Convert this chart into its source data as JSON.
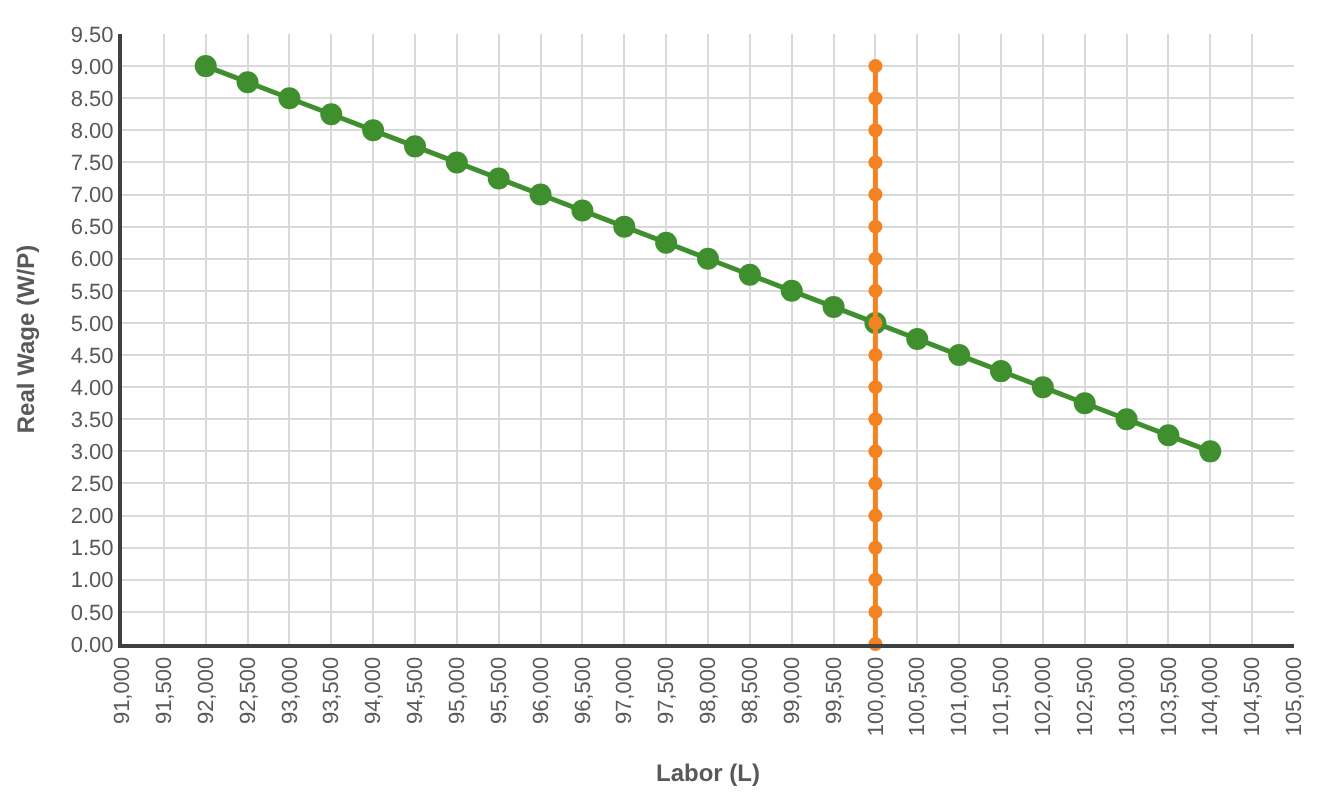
{
  "chart_data": {
    "type": "line",
    "xlabel": "Labor (L)",
    "ylabel": "Real Wage (W/P)",
    "xlim": [
      91000,
      105000
    ],
    "xticks": [
      {
        "value": 91000,
        "label": "91,000"
      },
      {
        "value": 91500,
        "label": "91,500"
      },
      {
        "value": 92000,
        "label": "92,000"
      },
      {
        "value": 92500,
        "label": "92,500"
      },
      {
        "value": 93000,
        "label": "93,000"
      },
      {
        "value": 93500,
        "label": "93,500"
      },
      {
        "value": 94000,
        "label": "94,000"
      },
      {
        "value": 94500,
        "label": "94,500"
      },
      {
        "value": 95000,
        "label": "95,000"
      },
      {
        "value": 95500,
        "label": "95,500"
      },
      {
        "value": 96000,
        "label": "96,000"
      },
      {
        "value": 96500,
        "label": "96,500"
      },
      {
        "value": 97000,
        "label": "97,000"
      },
      {
        "value": 97500,
        "label": "97,500"
      },
      {
        "value": 98000,
        "label": "98,000"
      },
      {
        "value": 98500,
        "label": "98,500"
      },
      {
        "value": 99000,
        "label": "99,000"
      },
      {
        "value": 99500,
        "label": "99,500"
      },
      {
        "value": 100000,
        "label": "100,000"
      },
      {
        "value": 100500,
        "label": "100,500"
      },
      {
        "value": 101000,
        "label": "101,000"
      },
      {
        "value": 101500,
        "label": "101,500"
      },
      {
        "value": 102000,
        "label": "102,000"
      },
      {
        "value": 102500,
        "label": "102,500"
      },
      {
        "value": 103000,
        "label": "103,000"
      },
      {
        "value": 103500,
        "label": "103,500"
      },
      {
        "value": 104000,
        "label": "104,000"
      },
      {
        "value": 104500,
        "label": "104,500"
      },
      {
        "value": 105000,
        "label": "105,000"
      }
    ],
    "ylim": [
      0,
      9.5
    ],
    "yticks": [
      {
        "value": 0,
        "label": "0.00"
      },
      {
        "value": 0.5,
        "label": "0.50"
      },
      {
        "value": 1,
        "label": "1.00"
      },
      {
        "value": 1.5,
        "label": "1.50"
      },
      {
        "value": 2,
        "label": "2.00"
      },
      {
        "value": 2.5,
        "label": "2.50"
      },
      {
        "value": 3,
        "label": "3.00"
      },
      {
        "value": 3.5,
        "label": "3.50"
      },
      {
        "value": 4,
        "label": "4.00"
      },
      {
        "value": 4.5,
        "label": "4.50"
      },
      {
        "value": 5,
        "label": "5.00"
      },
      {
        "value": 5.5,
        "label": "5.50"
      },
      {
        "value": 6,
        "label": "6.00"
      },
      {
        "value": 6.5,
        "label": "6.50"
      },
      {
        "value": 7,
        "label": "7.00"
      },
      {
        "value": 7.5,
        "label": "7.50"
      },
      {
        "value": 8,
        "label": "8.00"
      },
      {
        "value": 8.5,
        "label": "8.50"
      },
      {
        "value": 9,
        "label": "9.00"
      },
      {
        "value": 9.5,
        "label": "9.50"
      }
    ],
    "grid": true,
    "marker": "circle",
    "line_style": "solid",
    "series": [
      {
        "color": "#3f8f2f",
        "x": [
          92000,
          92500,
          93000,
          93500,
          94000,
          94500,
          95000,
          95500,
          96000,
          96500,
          97000,
          97500,
          98000,
          98500,
          99000,
          99500,
          100000,
          100500,
          101000,
          101500,
          102000,
          102500,
          103000,
          103500,
          104000
        ],
        "values": [
          9,
          8.75,
          8.5,
          8.25,
          8,
          7.75,
          7.5,
          7.25,
          7,
          6.75,
          6.5,
          6.25,
          6,
          5.75,
          5.5,
          5.25,
          5,
          4.75,
          4.5,
          4.25,
          4,
          3.75,
          3.5,
          3.25,
          3
        ]
      },
      {
        "color": "#f58220",
        "x": [
          100000,
          100000,
          100000,
          100000,
          100000,
          100000,
          100000,
          100000,
          100000,
          100000,
          100000,
          100000,
          100000,
          100000,
          100000,
          100000,
          100000,
          100000,
          100000
        ],
        "values": [
          0,
          0.5,
          1,
          1.5,
          2,
          2.5,
          3,
          3.5,
          4,
          4.5,
          5,
          5.5,
          6,
          6.5,
          7,
          7.5,
          8,
          8.5,
          9
        ]
      }
    ]
  }
}
